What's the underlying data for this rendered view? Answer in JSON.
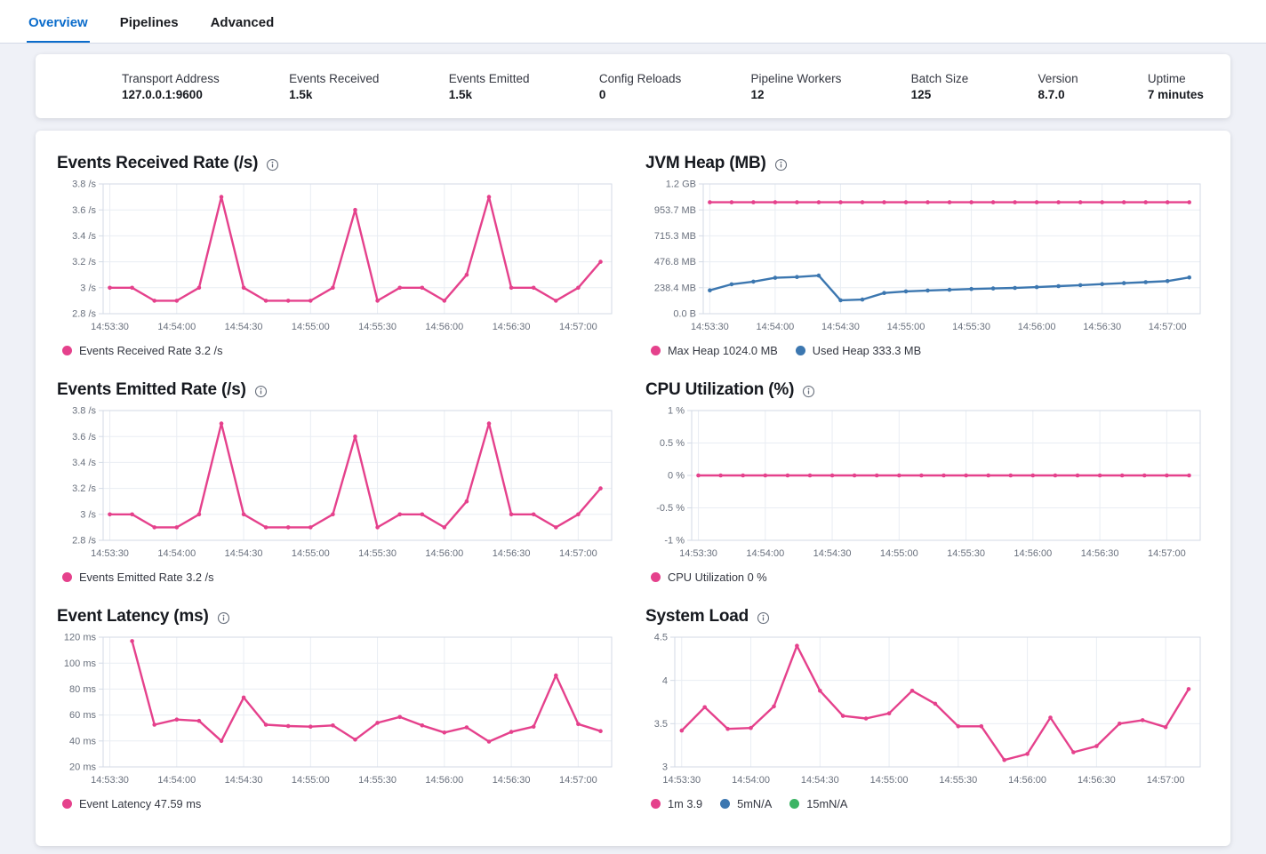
{
  "tabs": [
    {
      "label": "Overview",
      "active": true
    },
    {
      "label": "Pipelines",
      "active": false
    },
    {
      "label": "Advanced",
      "active": false
    }
  ],
  "stats": {
    "items": [
      {
        "label": "Transport Address",
        "value": "127.0.0.1:9600"
      },
      {
        "label": "Events Received",
        "value": "1.5k"
      },
      {
        "label": "Events Emitted",
        "value": "1.5k"
      },
      {
        "label": "Config Reloads",
        "value": "0"
      },
      {
        "label": "Pipeline Workers",
        "value": "12"
      },
      {
        "label": "Batch Size",
        "value": "125"
      },
      {
        "label": "Version",
        "value": "8.7.0"
      },
      {
        "label": "Uptime",
        "value": "7 minutes"
      }
    ]
  },
  "colors": {
    "accent_blue": "#0b6ccb",
    "series_pink": "#e5418c",
    "series_blue": "#3c77b0",
    "series_green": "#3cb464",
    "grid": "#e9edf3",
    "plot_border": "#d3dae6",
    "axis_text": "#69707d"
  },
  "time_axis": {
    "tick_labels": [
      "14:53:30",
      "14:54:00",
      "14:54:30",
      "14:55:00",
      "14:55:30",
      "14:56:00",
      "14:56:30",
      "14:57:00"
    ],
    "tick_interval_s": 30,
    "point_interval_s": 10,
    "x_domain": [
      -3,
      225
    ]
  },
  "chart_data": [
    {
      "type": "line",
      "title": "Events Received Rate (/s)",
      "y_ticks": [
        {
          "v": 2.8,
          "label": "2.8 /s"
        },
        {
          "v": 3.0,
          "label": "3 /s"
        },
        {
          "v": 3.2,
          "label": "3.2 /s"
        },
        {
          "v": 3.4,
          "label": "3.4 /s"
        },
        {
          "v": 3.6,
          "label": "3.6 /s"
        },
        {
          "v": 3.8,
          "label": "3.8 /s"
        }
      ],
      "series": [
        {
          "name": "Events Received Rate",
          "legend": "Events Received Rate 3.2 /s",
          "color": "#e5418c",
          "values": [
            3,
            3,
            2.9,
            2.9,
            3,
            3.7,
            3,
            2.9,
            2.9,
            2.9,
            3,
            3.6,
            2.9,
            3,
            3,
            2.9,
            3.1,
            3.7,
            3,
            3,
            2.9,
            3,
            3.2
          ]
        }
      ]
    },
    {
      "type": "line",
      "title": "JVM Heap (MB)",
      "y_ticks": [
        {
          "v": 0,
          "label": "0.0 B"
        },
        {
          "v": 238.4,
          "label": "238.4 MB"
        },
        {
          "v": 476.8,
          "label": "476.8 MB"
        },
        {
          "v": 715.3,
          "label": "715.3 MB"
        },
        {
          "v": 953.7,
          "label": "953.7 MB"
        },
        {
          "v": 1192.1,
          "label": "1.2 GB"
        }
      ],
      "series": [
        {
          "name": "Max Heap",
          "legend": "Max Heap 1024.0 MB",
          "color": "#e5418c",
          "values": [
            1024,
            1024,
            1024,
            1024,
            1024,
            1024,
            1024,
            1024,
            1024,
            1024,
            1024,
            1024,
            1024,
            1024,
            1024,
            1024,
            1024,
            1024,
            1024,
            1024,
            1024,
            1024,
            1024
          ]
        },
        {
          "name": "Used Heap",
          "legend": "Used Heap 333.3 MB",
          "color": "#3c77b0",
          "values": [
            215,
            270,
            295,
            330,
            337,
            350,
            123,
            130,
            190,
            205,
            213,
            220,
            227,
            232,
            237,
            244,
            253,
            262,
            272,
            281,
            290,
            300,
            333.3
          ]
        }
      ]
    },
    {
      "type": "line",
      "title": "Events Emitted Rate (/s)",
      "y_ticks": [
        {
          "v": 2.8,
          "label": "2.8 /s"
        },
        {
          "v": 3.0,
          "label": "3 /s"
        },
        {
          "v": 3.2,
          "label": "3.2 /s"
        },
        {
          "v": 3.4,
          "label": "3.4 /s"
        },
        {
          "v": 3.6,
          "label": "3.6 /s"
        },
        {
          "v": 3.8,
          "label": "3.8 /s"
        }
      ],
      "series": [
        {
          "name": "Events Emitted Rate",
          "legend": "Events Emitted Rate 3.2 /s",
          "color": "#e5418c",
          "values": [
            3,
            3,
            2.9,
            2.9,
            3,
            3.7,
            3,
            2.9,
            2.9,
            2.9,
            3,
            3.6,
            2.9,
            3,
            3,
            2.9,
            3.1,
            3.7,
            3,
            3,
            2.9,
            3,
            3.2
          ]
        }
      ]
    },
    {
      "type": "line",
      "title": "CPU Utilization (%)",
      "y_ticks": [
        {
          "v": -1,
          "label": "-1 %"
        },
        {
          "v": -0.5,
          "label": "-0.5 %"
        },
        {
          "v": 0,
          "label": "0 %"
        },
        {
          "v": 0.5,
          "label": "0.5 %"
        },
        {
          "v": 1,
          "label": "1 %"
        }
      ],
      "series": [
        {
          "name": "CPU Utilization",
          "legend": "CPU Utilization 0 %",
          "color": "#e5418c",
          "values": [
            0,
            0,
            0,
            0,
            0,
            0,
            0,
            0,
            0,
            0,
            0,
            0,
            0,
            0,
            0,
            0,
            0,
            0,
            0,
            0,
            0,
            0,
            0
          ]
        }
      ]
    },
    {
      "type": "line",
      "title": "Event Latency (ms)",
      "y_ticks": [
        {
          "v": 20,
          "label": "20 ms"
        },
        {
          "v": 40,
          "label": "40 ms"
        },
        {
          "v": 60,
          "label": "60 ms"
        },
        {
          "v": 80,
          "label": "80 ms"
        },
        {
          "v": 100,
          "label": "100 ms"
        },
        {
          "v": 120,
          "label": "120 ms"
        }
      ],
      "series": [
        {
          "name": "Event Latency",
          "legend": "Event Latency 47.59 ms",
          "color": "#e5418c",
          "values": [
            null,
            117,
            52.5,
            56.5,
            55.5,
            40,
            73.5,
            52.5,
            51.5,
            51,
            52,
            41,
            54,
            58.5,
            52,
            46.5,
            50.5,
            39.5,
            47,
            51,
            90.5,
            53,
            47.59
          ]
        }
      ]
    },
    {
      "type": "line",
      "title": "System Load",
      "y_ticks": [
        {
          "v": 3,
          "label": "3"
        },
        {
          "v": 3.5,
          "label": "3.5"
        },
        {
          "v": 4,
          "label": "4"
        },
        {
          "v": 4.5,
          "label": "4.5"
        }
      ],
      "series": [
        {
          "name": "1m",
          "legend": "1m 3.9",
          "color": "#e5418c",
          "values": [
            3.42,
            3.69,
            3.44,
            3.45,
            3.7,
            4.4,
            3.88,
            3.59,
            3.56,
            3.62,
            3.88,
            3.73,
            3.47,
            3.47,
            3.08,
            3.15,
            3.57,
            3.17,
            3.24,
            3.5,
            3.54,
            3.46,
            3.9
          ]
        },
        {
          "name": "5m",
          "legend": "5mN/A",
          "color": "#3c77b0",
          "values": []
        },
        {
          "name": "15m",
          "legend": "15mN/A",
          "color": "#3cb464",
          "values": []
        }
      ]
    }
  ]
}
